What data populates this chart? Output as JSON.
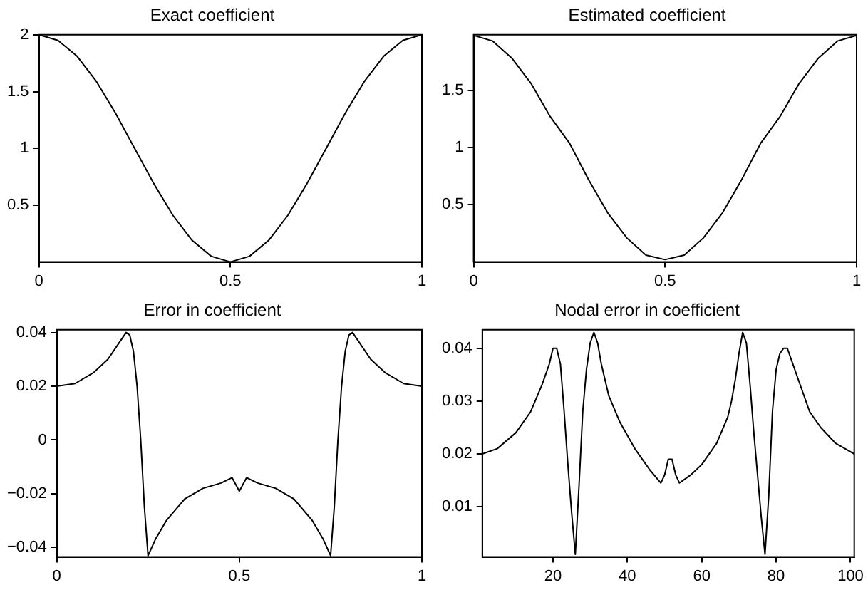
{
  "chart_data": [
    {
      "type": "line",
      "title": "Exact coefficient",
      "x": [
        0,
        0.05,
        0.1,
        0.15,
        0.2,
        0.25,
        0.3,
        0.35,
        0.4,
        0.45,
        0.5,
        0.55,
        0.6,
        0.65,
        0.7,
        0.75,
        0.8,
        0.85,
        0.9,
        0.95,
        1
      ],
      "series": [
        {
          "color": "#000000",
          "values": [
            2,
            1.95,
            1.81,
            1.59,
            1.31,
            1,
            0.69,
            0.41,
            0.19,
            0.05,
            0,
            0.05,
            0.19,
            0.41,
            0.69,
            1,
            1.31,
            1.59,
            1.81,
            1.95,
            2
          ]
        }
      ],
      "xlim": [
        0,
        1
      ],
      "xticks": [
        0,
        0.5,
        1
      ],
      "ylim": [
        0,
        2
      ],
      "yticks": [
        0.5,
        1,
        1.5,
        2
      ],
      "grid": false
    },
    {
      "type": "line",
      "title": "Estimated coefficient",
      "x": [
        0,
        0.05,
        0.1,
        0.15,
        0.2,
        0.25,
        0.3,
        0.35,
        0.4,
        0.45,
        0.5,
        0.55,
        0.6,
        0.65,
        0.7,
        0.75,
        0.8,
        0.85,
        0.9,
        0.95,
        1
      ],
      "series": [
        {
          "color": "#000000",
          "values": [
            1.98,
            1.93,
            1.78,
            1.56,
            1.27,
            1.04,
            0.72,
            0.43,
            0.21,
            0.06,
            0.02,
            0.06,
            0.21,
            0.43,
            0.72,
            1.04,
            1.27,
            1.56,
            1.78,
            1.93,
            1.98
          ]
        }
      ],
      "xlim": [
        0,
        1
      ],
      "xticks": [
        0,
        0.5,
        1
      ],
      "ylim": [
        0,
        1.985
      ],
      "yticks": [
        0.5,
        1,
        1.5
      ],
      "grid": false
    },
    {
      "type": "line",
      "title": "Error in coefficient",
      "x": [
        0,
        0.05,
        0.1,
        0.14,
        0.17,
        0.19,
        0.2,
        0.21,
        0.22,
        0.23,
        0.24,
        0.25,
        0.27,
        0.3,
        0.35,
        0.4,
        0.45,
        0.48,
        0.5,
        0.52,
        0.55,
        0.6,
        0.65,
        0.7,
        0.73,
        0.75,
        0.76,
        0.77,
        0.78,
        0.79,
        0.8,
        0.81,
        0.83,
        0.86,
        0.9,
        0.95,
        1
      ],
      "series": [
        {
          "color": "#000000",
          "values": [
            0.02,
            0.021,
            0.025,
            0.03,
            0.036,
            0.04,
            0.039,
            0.033,
            0.02,
            0,
            -0.025,
            -0.043,
            -0.037,
            -0.03,
            -0.022,
            -0.018,
            -0.016,
            -0.014,
            -0.019,
            -0.014,
            -0.016,
            -0.018,
            -0.022,
            -0.03,
            -0.037,
            -0.043,
            -0.025,
            0,
            0.02,
            0.033,
            0.039,
            0.04,
            0.036,
            0.03,
            0.025,
            0.021,
            0.02
          ]
        }
      ],
      "xlim": [
        0,
        1
      ],
      "xticks": [
        0,
        0.5,
        1
      ],
      "ylim": [
        -0.0435,
        0.041
      ],
      "yticks": [
        {
          "value": -0.04,
          "label": "−0.04"
        },
        {
          "value": -0.02,
          "label": "−0.02"
        },
        0,
        0.02,
        0.04
      ],
      "grid": false
    },
    {
      "type": "line",
      "title": "Nodal error in coefficient",
      "x": [
        1,
        5,
        10,
        14,
        17,
        19,
        20,
        21,
        22,
        23,
        24,
        25,
        26,
        27,
        28,
        29,
        30,
        31,
        32,
        33,
        35,
        38,
        42,
        46,
        49,
        50,
        51,
        52,
        53,
        54,
        57,
        60,
        64,
        67,
        68,
        69,
        70,
        71,
        72,
        73,
        74,
        75,
        76,
        77,
        78,
        79,
        80,
        81,
        82,
        83,
        84,
        86,
        89,
        92,
        96,
        101
      ],
      "series": [
        {
          "color": "#000000",
          "values": [
            0.02,
            0.021,
            0.024,
            0.028,
            0.033,
            0.037,
            0.04,
            0.04,
            0.037,
            0.028,
            0.018,
            0.009,
            0.001,
            0.014,
            0.028,
            0.036,
            0.041,
            0.043,
            0.041,
            0.037,
            0.031,
            0.026,
            0.021,
            0.017,
            0.0145,
            0.016,
            0.019,
            0.019,
            0.016,
            0.0145,
            0.016,
            0.018,
            0.022,
            0.027,
            0.03,
            0.034,
            0.039,
            0.043,
            0.041,
            0.033,
            0.024,
            0.016,
            0.008,
            0.001,
            0.012,
            0.028,
            0.036,
            0.039,
            0.04,
            0.04,
            0.038,
            0.034,
            0.028,
            0.025,
            0.022,
            0.02
          ]
        }
      ],
      "xlim": [
        1,
        101
      ],
      "xticks": [
        20,
        40,
        60,
        80,
        100
      ],
      "ylim": [
        0.0005,
        0.0435
      ],
      "yticks": [
        0.01,
        0.02,
        0.03,
        0.04
      ],
      "grid": false
    }
  ]
}
